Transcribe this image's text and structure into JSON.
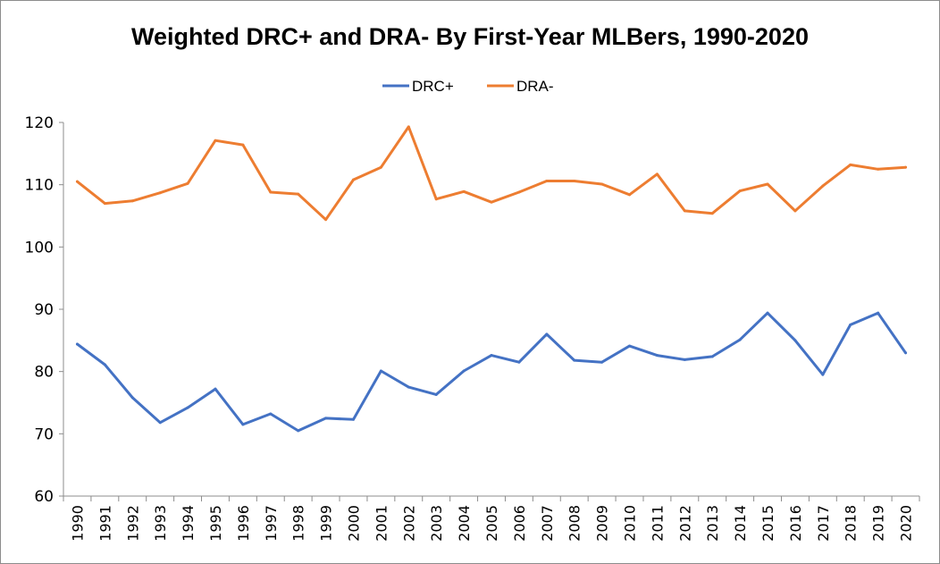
{
  "chart_data": {
    "type": "line",
    "title": "Weighted DRC+ and DRA- By First-Year MLBers, 1990-2020",
    "xlabel": "",
    "ylabel": "",
    "ylim": [
      60,
      120
    ],
    "yticks": [
      "60",
      "70",
      "80",
      "90",
      "100",
      "110",
      "120"
    ],
    "grid": false,
    "legend_position": "top-center",
    "categories": [
      "1990",
      "1991",
      "1992",
      "1993",
      "1994",
      "1995",
      "1996",
      "1997",
      "1998",
      "1999",
      "2000",
      "2001",
      "2002",
      "2003",
      "2004",
      "2005",
      "2006",
      "2007",
      "2008",
      "2009",
      "2010",
      "2011",
      "2012",
      "2013",
      "2014",
      "2015",
      "2016",
      "2017",
      "2018",
      "2019",
      "2020"
    ],
    "series": [
      {
        "name": "DRC+",
        "color": "#4472C4",
        "values": [
          84.4,
          81.1,
          75.8,
          71.8,
          74.2,
          77.2,
          71.5,
          73.2,
          70.5,
          72.5,
          72.3,
          80.1,
          77.5,
          76.3,
          80.1,
          82.6,
          81.5,
          86.0,
          81.8,
          81.5,
          84.1,
          82.6,
          81.9,
          82.4,
          85.1,
          89.4,
          85.0,
          79.5,
          87.5,
          89.4,
          83.0
        ]
      },
      {
        "name": "DRA-",
        "color": "#ED7D31",
        "values": [
          110.5,
          107.0,
          107.4,
          108.7,
          110.2,
          117.1,
          116.4,
          108.8,
          108.5,
          104.4,
          110.8,
          112.8,
          119.3,
          107.7,
          108.9,
          107.2,
          108.8,
          110.6,
          110.6,
          110.1,
          108.4,
          111.7,
          105.8,
          105.4,
          109.0,
          110.1,
          105.8,
          109.8,
          113.2,
          112.5,
          112.8
        ]
      }
    ]
  }
}
